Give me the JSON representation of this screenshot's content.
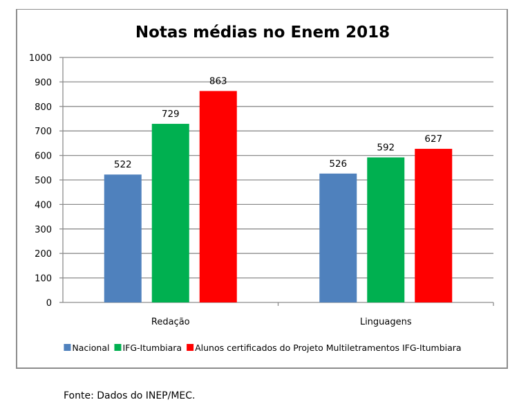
{
  "chart_data": {
    "type": "bar",
    "title": "Notas médias no Enem 2018",
    "xlabel": "",
    "ylabel": "",
    "ylim": [
      0,
      1000
    ],
    "yticks": [
      0,
      100,
      200,
      300,
      400,
      500,
      600,
      700,
      800,
      900,
      1000
    ],
    "grid": true,
    "legend_position": "bottom",
    "categories": [
      "Redação",
      "Linguagens"
    ],
    "series": [
      {
        "name": "Nacional",
        "color": "#4f81bd",
        "values": [
          522,
          526
        ]
      },
      {
        "name": "IFG-Itumbiara",
        "color": "#00b050",
        "values": [
          729,
          592
        ]
      },
      {
        "name": "Alunos certificados do Projeto Multiletramentos IFG-Itumbiara",
        "color": "#ff0000",
        "values": [
          863,
          627
        ]
      }
    ]
  },
  "source_note": "Fonte: Dados do INEP/MEC."
}
